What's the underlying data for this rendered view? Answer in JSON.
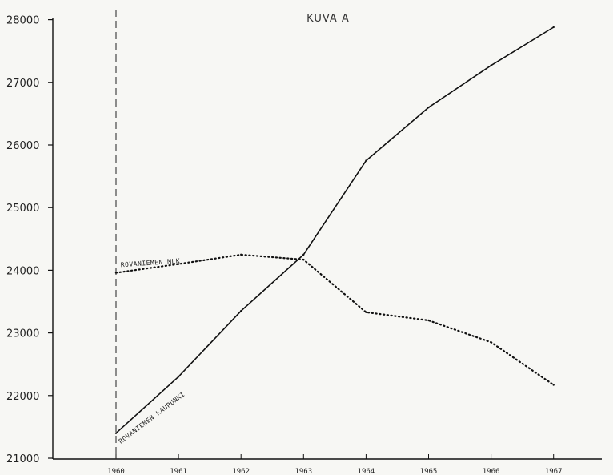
{
  "chart_data": {
    "type": "line",
    "title": "KUVA A",
    "xlabel": "",
    "ylabel": "",
    "x": [
      1960,
      1961,
      1962,
      1963,
      1964,
      1965,
      1966,
      1967
    ],
    "xtick_labels": [
      "1960",
      "1961",
      "1962",
      "1963",
      "1964",
      "1965",
      "1966",
      "1967"
    ],
    "ytick_labels": [
      "21000",
      "22000",
      "23000",
      "24000",
      "25000",
      "26000",
      "27000",
      "28000"
    ],
    "ylim": [
      21000,
      28000
    ],
    "grid": false,
    "reference_line_x": 1960,
    "series": [
      {
        "name": "ROVANIEMEN KAUPUNKI",
        "style": "solid",
        "color": "#111111",
        "values": [
          21400,
          22300,
          23350,
          24250,
          25750,
          26600,
          27270,
          27880
        ]
      },
      {
        "name": "ROVANIEMEN MLK",
        "style": "dotted",
        "color": "#111111",
        "values": [
          23960,
          24100,
          24250,
          24170,
          23330,
          23200,
          22850,
          22170
        ]
      }
    ]
  }
}
